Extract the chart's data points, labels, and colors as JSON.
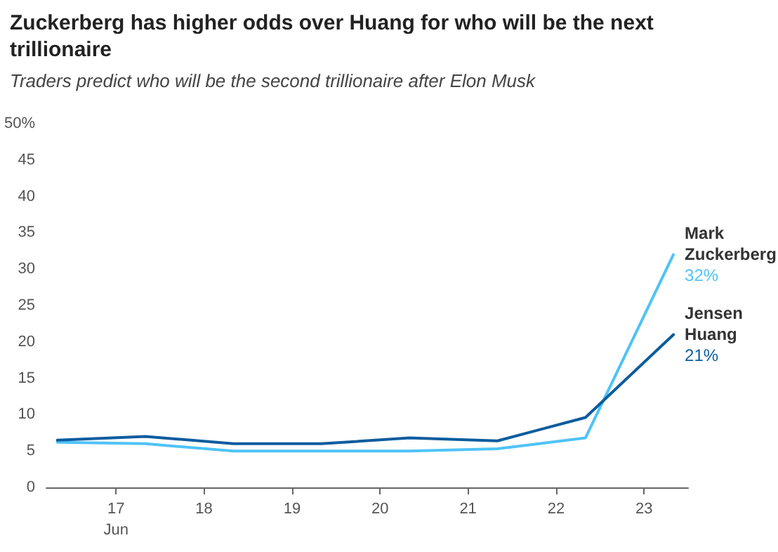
{
  "chart_data": {
    "type": "line",
    "title": "Zuckerberg has higher odds over Huang for who will be the next trillionaire",
    "subtitle": "Traders predict who will be the second trillionaire after Elon Musk",
    "x": [
      "--06-16T08:00",
      "--06-17T08:00",
      "--06-18T08:00",
      "--06-19T08:00",
      "--06-20T08:00",
      "--06-21T08:00",
      "--06-22T08:00",
      "--06-23T08:00"
    ],
    "series": [
      {
        "name": "Mark Zuckerberg",
        "color": "#4fc3f7",
        "values": [
          6.2,
          6,
          5,
          5,
          5,
          5.3,
          6.8,
          32
        ],
        "value_labels": [
          null,
          null,
          null,
          null,
          null,
          null,
          null,
          "32%"
        ]
      },
      {
        "name": "Jensen Huang",
        "color": "#0b5c9e",
        "values": [
          6.5,
          7,
          6,
          6,
          6.8,
          6.4,
          9.6,
          21
        ],
        "value_labels": [
          null,
          null,
          null,
          null,
          null,
          null,
          null,
          "21%"
        ]
      }
    ],
    "xlim": [
      "--06-16T05:00",
      "--06-23T12:00"
    ],
    "xticks": [
      {
        "value": "--06-17",
        "label": "17\nJun"
      },
      {
        "value": "--06-18",
        "label": "18"
      },
      {
        "value": "--06-19",
        "label": "19"
      },
      {
        "value": "--06-20",
        "label": "20"
      },
      {
        "value": "--06-21",
        "label": "21"
      },
      {
        "value": "--06-22",
        "label": "22"
      },
      {
        "value": "--06-23",
        "label": "23"
      }
    ],
    "ylim": [
      0,
      50
    ],
    "yticks": [
      0,
      5,
      10,
      15,
      20,
      25,
      30,
      35,
      40,
      45,
      {
        "value": 50,
        "label": "50%"
      }
    ],
    "grid": false,
    "legend": false,
    "marker": "none",
    "line_style": "solid"
  }
}
